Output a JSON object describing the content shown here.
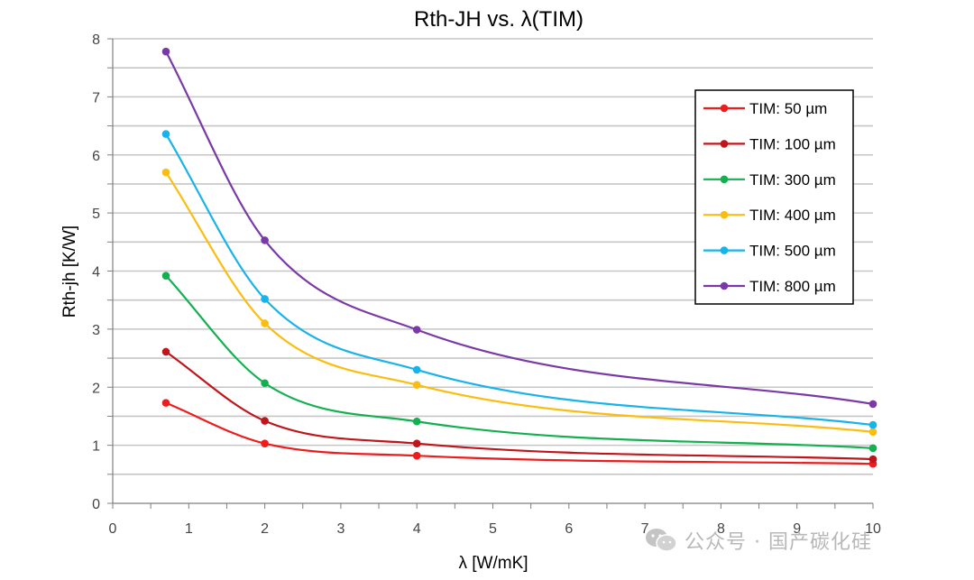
{
  "chart_data": {
    "type": "line",
    "title": "Rth-JH vs. λ(TIM)",
    "xlabel": "λ [W/mK]",
    "ylabel": "Rth-jh [K/W]",
    "xlim": [
      0,
      10
    ],
    "ylim": [
      0,
      8
    ],
    "x_ticks": [
      "0",
      "1",
      "2",
      "3",
      "4",
      "5",
      "6",
      "7",
      "8",
      "9",
      "10"
    ],
    "y_ticks": [
      "0",
      "1",
      "2",
      "3",
      "4",
      "5",
      "6",
      "7",
      "8"
    ],
    "grid": "horizontal",
    "legend_position": "right",
    "x": [
      0.7,
      2,
      4,
      10
    ],
    "series": [
      {
        "name": "TIM: 50 µm",
        "color": "#ee1c1c",
        "values": [
          1.73,
          1.03,
          0.82,
          0.68
        ]
      },
      {
        "name": "TIM: 100 µm",
        "color": "#c0151a",
        "values": [
          2.61,
          1.42,
          1.03,
          0.76
        ]
      },
      {
        "name": "TIM: 300 µm",
        "color": "#12b04f",
        "values": [
          3.92,
          2.07,
          1.41,
          0.95
        ]
      },
      {
        "name": "TIM: 400 µm",
        "color": "#fbbd0f",
        "values": [
          5.7,
          3.1,
          2.04,
          1.23
        ]
      },
      {
        "name": "TIM: 500 µm",
        "color": "#18b3ea",
        "values": [
          6.36,
          3.52,
          2.3,
          1.35
        ]
      },
      {
        "name": "TIM: 800 µm",
        "color": "#7a39a6",
        "values": [
          7.78,
          4.53,
          2.99,
          1.71
        ]
      }
    ]
  },
  "watermark": {
    "icon": "wechat-icon",
    "text": "公众号 · 国产碳化硅"
  }
}
